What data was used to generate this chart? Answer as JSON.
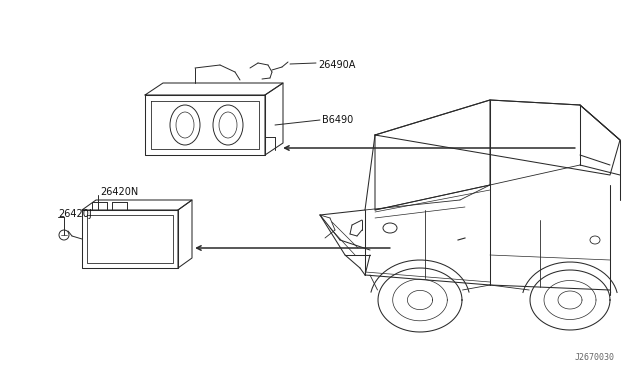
{
  "bg_color": "#ffffff",
  "line_color": "#2a2a2a",
  "label_color": "#111111",
  "diagram_code": "J2670030",
  "label_26490A": "26490A",
  "label_26490": "B6490",
  "label_26420N": "26420N",
  "label_26420J": "26420J",
  "figsize": [
    6.4,
    3.72
  ],
  "dpi": 100
}
